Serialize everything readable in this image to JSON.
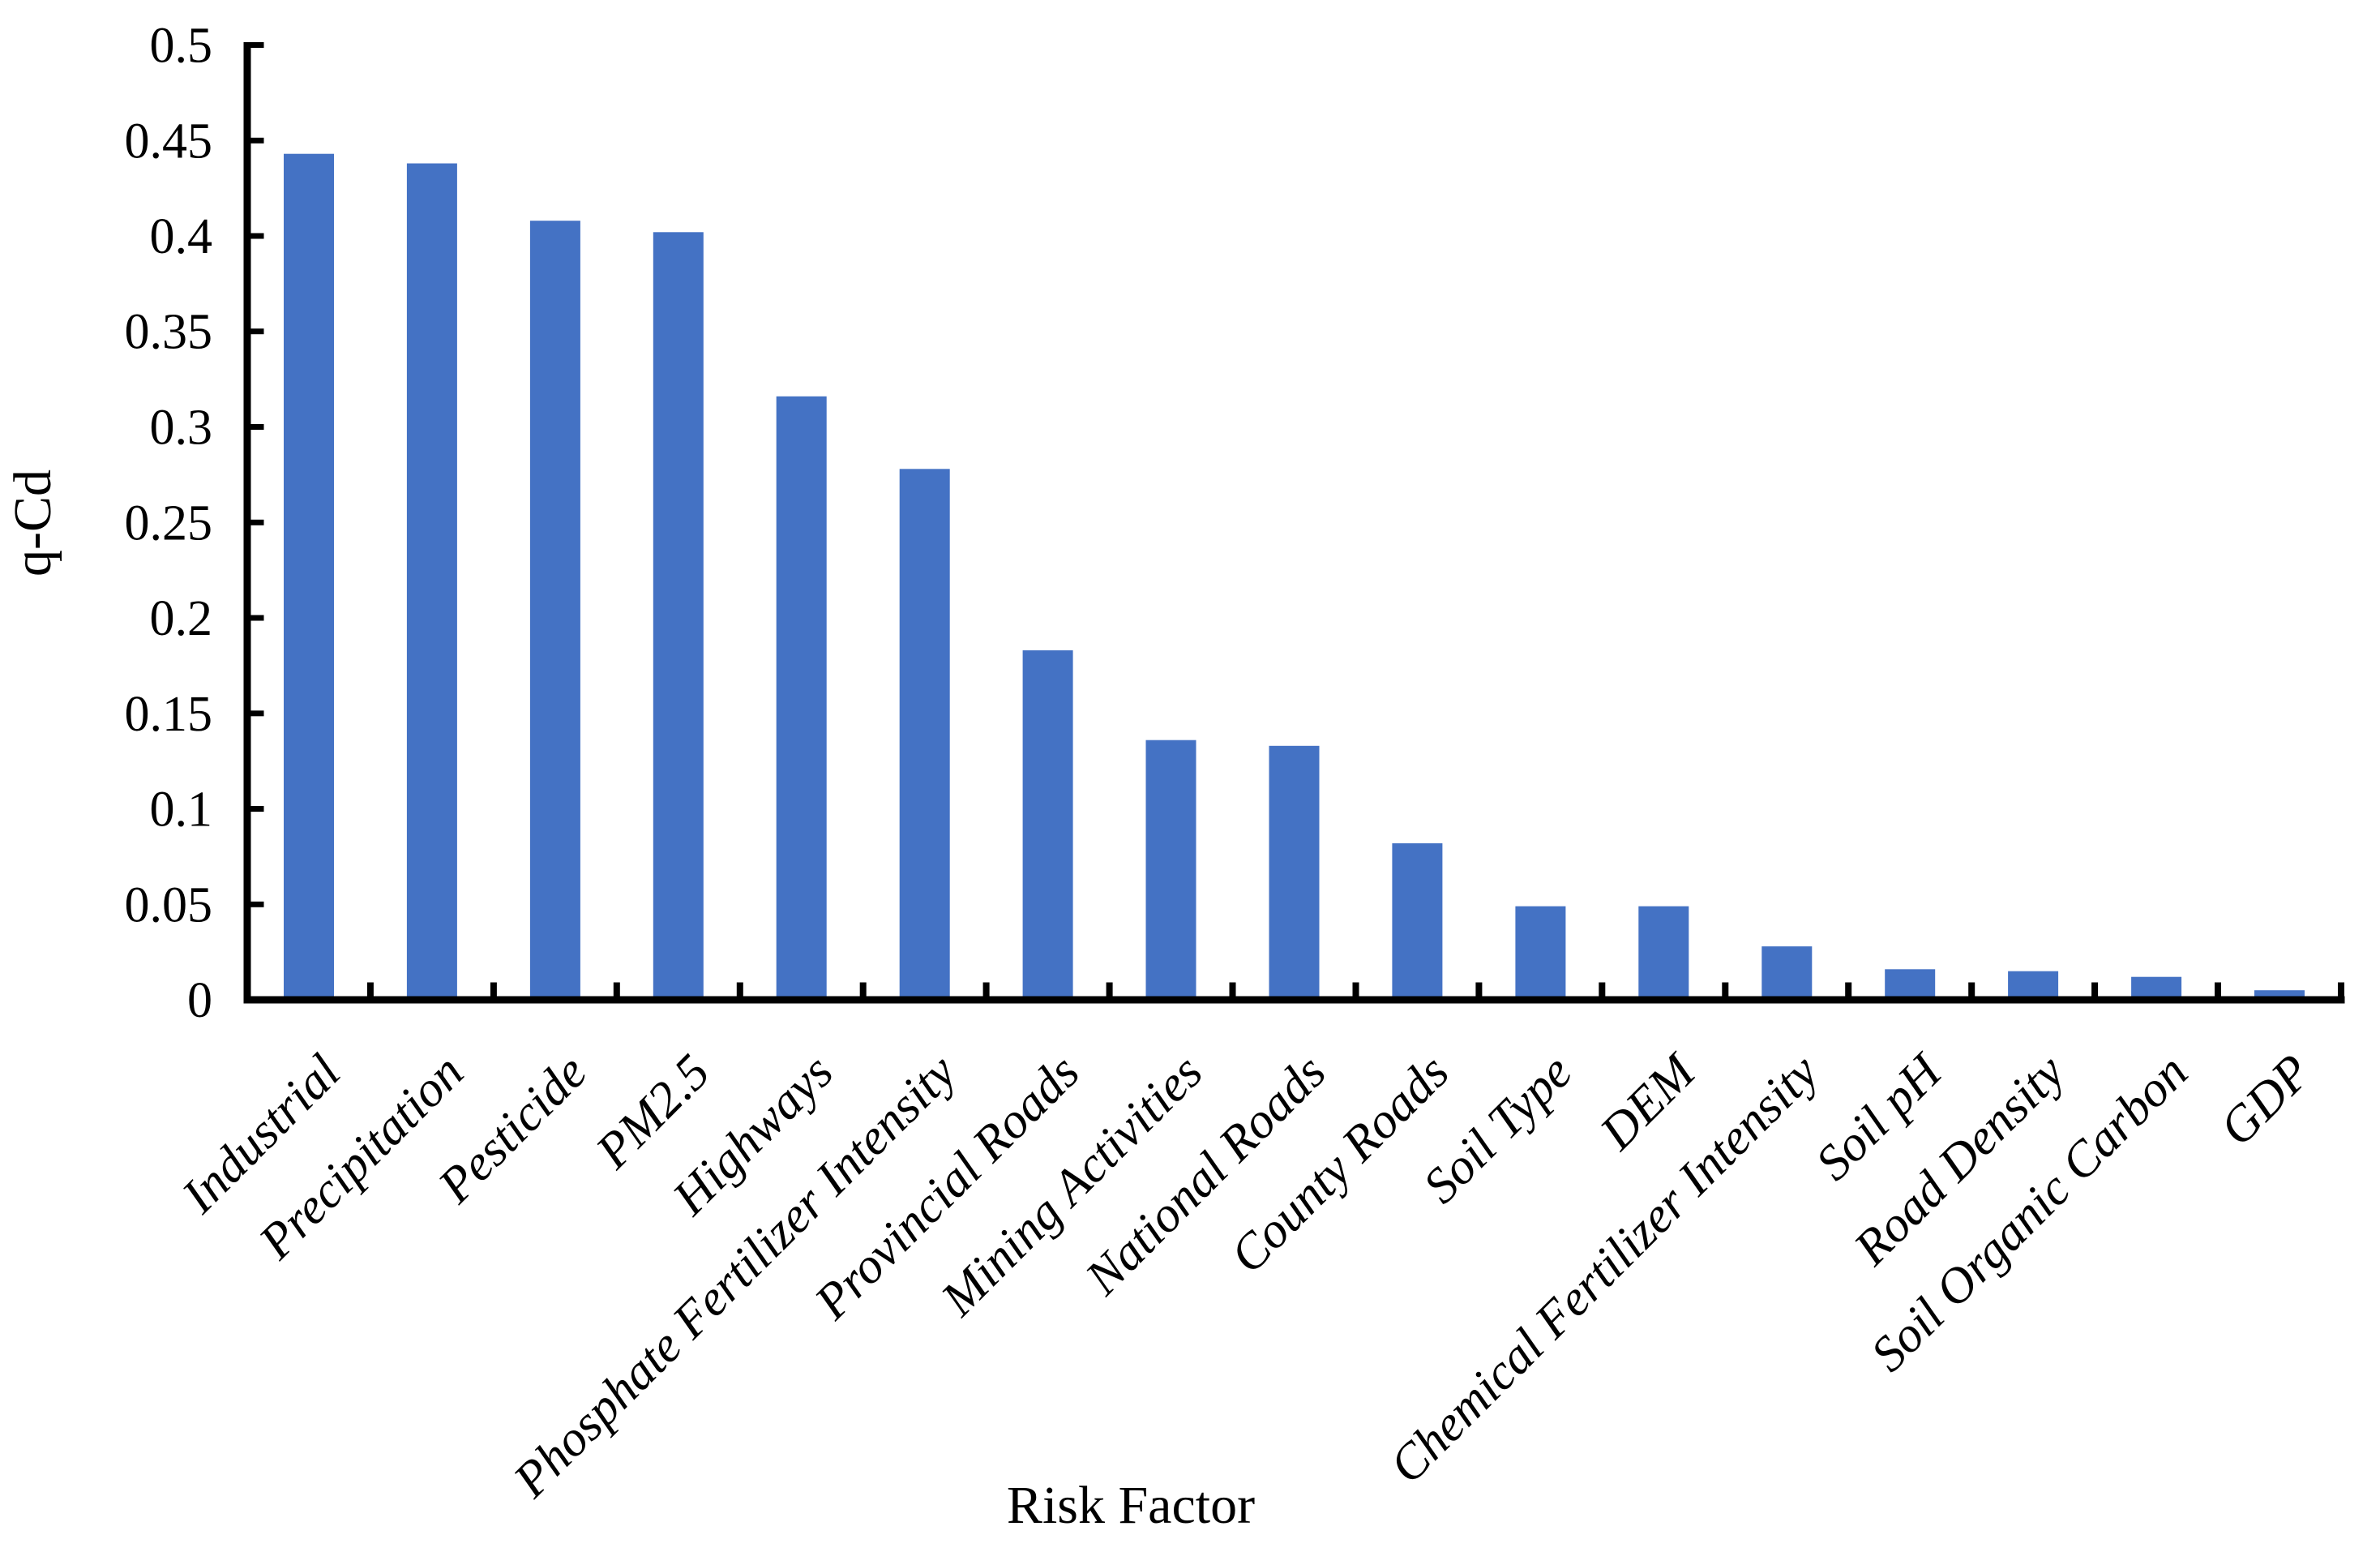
{
  "chart_data": {
    "type": "bar",
    "title": "",
    "xlabel": "Risk Factor",
    "ylabel": "q-Cd",
    "categories": [
      "Industrial",
      "Precipitation",
      "Pesticide",
      "PM2.5",
      "Highways",
      "Phosphate Fertilizer Intensity",
      "Provincial Roads",
      "Mining Activities",
      "National Roads",
      "County Roads",
      "Soil Type",
      "DEM",
      "Chemical Fertilizer Intensity",
      "Soil pH",
      "Road Density",
      "Soil Organic Carbon",
      "GDP"
    ],
    "values": [
      0.443,
      0.438,
      0.408,
      0.402,
      0.316,
      0.278,
      0.183,
      0.136,
      0.133,
      0.082,
      0.049,
      0.049,
      0.028,
      0.016,
      0.015,
      0.012,
      0.005
    ],
    "ylim": [
      0,
      0.5
    ],
    "ytick_interval": 0.05,
    "ytick_labels": [
      "0",
      "0.05",
      "0.1",
      "0.15",
      "0.2",
      "0.25",
      "0.3",
      "0.35",
      "0.4",
      "0.45",
      "0.5"
    ],
    "grid": false,
    "legend": "none",
    "bar_color": "#4472C4",
    "axis_color": "#000000",
    "background": "#FFFFFF",
    "x_labels_rotation_deg": 45
  }
}
